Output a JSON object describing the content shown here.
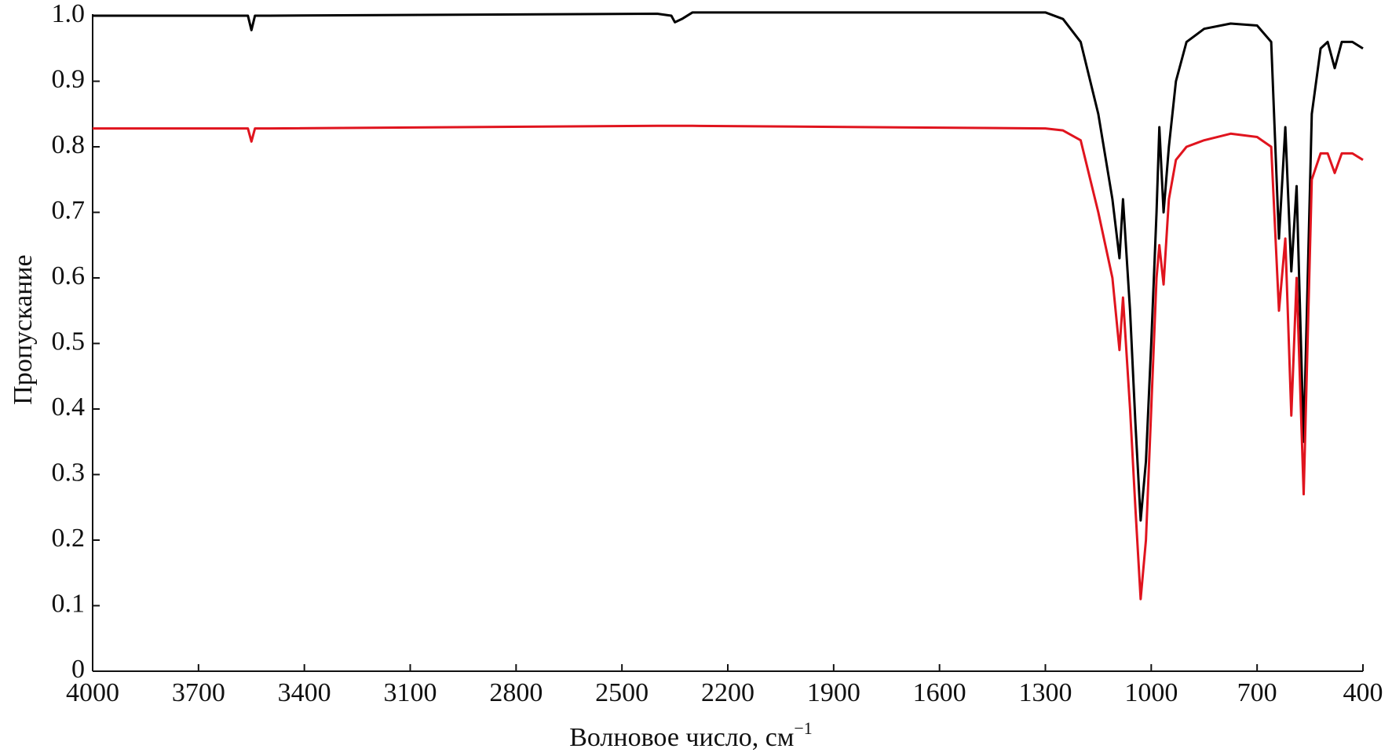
{
  "chart_data": {
    "type": "line",
    "xlabel": "Волновое число, см",
    "xlabel_sup": "−1",
    "ylabel": "Пропускание",
    "x": [
      4000,
      3600,
      3560,
      3550,
      3540,
      3500,
      2400,
      2360,
      2350,
      2330,
      2300,
      1300,
      1250,
      1200,
      1150,
      1110,
      1090,
      1080,
      1060,
      1045,
      1030,
      1015,
      1000,
      985,
      977,
      965,
      950,
      930,
      900,
      850,
      775,
      700,
      660,
      638,
      620,
      603,
      588,
      568,
      545,
      520,
      500,
      480,
      460,
      430,
      400
    ],
    "series": [
      {
        "color": "#000000",
        "values": [
          1.0,
          1.0,
          1.0,
          0.978,
          1.0,
          1.0,
          1.003,
          1.0,
          0.99,
          0.995,
          1.005,
          1.005,
          0.995,
          0.96,
          0.85,
          0.72,
          0.63,
          0.72,
          0.55,
          0.38,
          0.23,
          0.32,
          0.5,
          0.7,
          0.83,
          0.7,
          0.8,
          0.9,
          0.96,
          0.98,
          0.988,
          0.985,
          0.96,
          0.66,
          0.83,
          0.61,
          0.74,
          0.35,
          0.85,
          0.95,
          0.96,
          0.92,
          0.96,
          0.96,
          0.95
        ]
      },
      {
        "color": "#e0141e",
        "values": [
          0.828,
          0.828,
          0.828,
          0.808,
          0.828,
          0.828,
          0.832,
          0.832,
          0.832,
          0.832,
          0.832,
          0.828,
          0.825,
          0.81,
          0.7,
          0.6,
          0.49,
          0.57,
          0.4,
          0.25,
          0.11,
          0.2,
          0.4,
          0.6,
          0.65,
          0.59,
          0.72,
          0.78,
          0.8,
          0.81,
          0.82,
          0.815,
          0.8,
          0.55,
          0.66,
          0.39,
          0.6,
          0.27,
          0.75,
          0.79,
          0.79,
          0.76,
          0.79,
          0.79,
          0.78
        ]
      }
    ],
    "xlim": [
      4000,
      400
    ],
    "xticks": [
      4000,
      3700,
      3400,
      3100,
      2800,
      2500,
      2200,
      1900,
      1600,
      1300,
      1000,
      700,
      400
    ],
    "ylim": [
      0,
      1.0
    ],
    "yticks": [
      0,
      0.1,
      0.2,
      0.3,
      0.4,
      0.5,
      0.6,
      0.7,
      0.8,
      0.9,
      {
        "value": 1.0,
        "label": "1.0"
      }
    ],
    "grid": false
  }
}
